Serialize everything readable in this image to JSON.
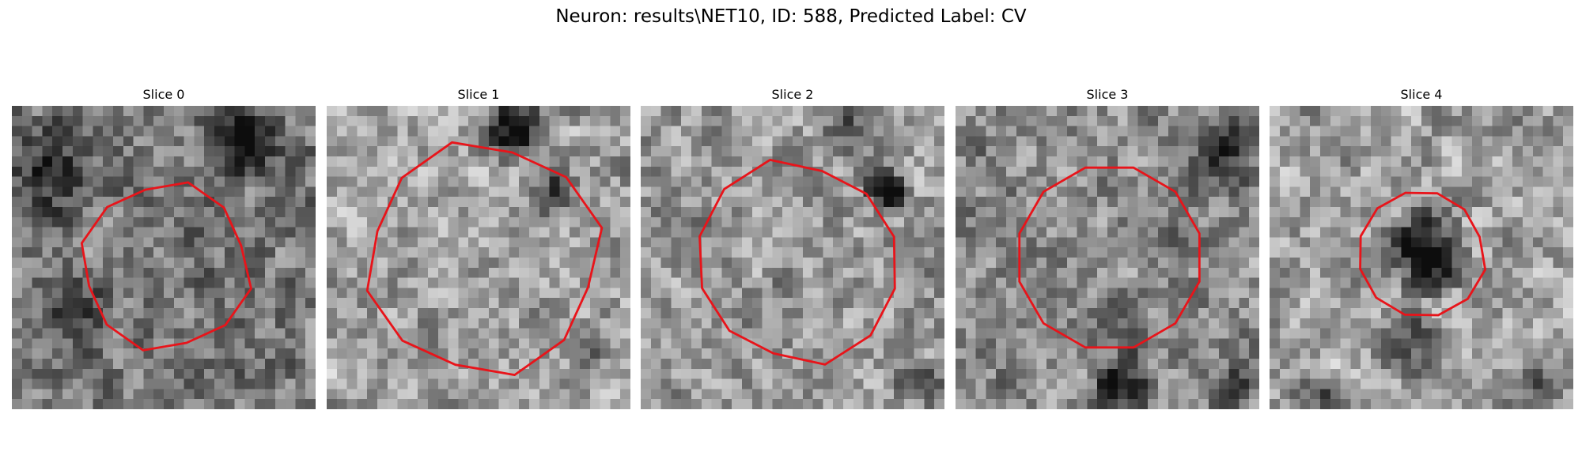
{
  "figure": {
    "title": "Neuron: results\\NET10, ID: 588, Predicted Label: CV"
  },
  "contour_color": "#e8141a",
  "panels": [
    {
      "title": "Slice 0",
      "seed": 11,
      "radius": 8.3,
      "cx": 15.2,
      "cy": 15.8,
      "dark": 0.25,
      "dark_blobs": [
        {
          "x": 22,
          "y": 3,
          "r": 5,
          "s": 0.55
        },
        {
          "x": 3,
          "y": 6,
          "r": 6,
          "s": 0.35
        },
        {
          "x": 6,
          "y": 20,
          "r": 4,
          "s": 0.3
        }
      ]
    },
    {
      "title": "Slice 1",
      "seed": 23,
      "radius": 11.5,
      "cx": 15.5,
      "cy": 15.2,
      "dark": 0.1,
      "dark_blobs": [
        {
          "x": 18,
          "y": 2,
          "r": 4,
          "s": 0.75
        },
        {
          "x": 22,
          "y": 8,
          "r": 3,
          "s": 0.5
        },
        {
          "x": 25,
          "y": 23,
          "r": 3,
          "s": 0.25
        }
      ]
    },
    {
      "title": "Slice 2",
      "seed": 37,
      "radius": 10.0,
      "cx": 15.5,
      "cy": 15.5,
      "dark": 0.12,
      "dark_blobs": [
        {
          "x": 24,
          "y": 8,
          "r": 3,
          "s": 0.65
        },
        {
          "x": 20,
          "y": 2,
          "r": 4,
          "s": 0.3
        },
        {
          "x": 27,
          "y": 27,
          "r": 3,
          "s": 0.3
        }
      ]
    },
    {
      "title": "Slice 3",
      "seed": 51,
      "radius": 10.0,
      "cx": 15.2,
      "cy": 15.0,
      "dark": 0.18,
      "dark_blobs": [
        {
          "x": 26,
          "y": 4,
          "r": 5,
          "s": 0.45
        },
        {
          "x": 16,
          "y": 27,
          "r": 4,
          "s": 0.45
        },
        {
          "x": 27,
          "y": 27,
          "r": 3,
          "s": 0.35
        }
      ]
    },
    {
      "title": "Slice 4",
      "seed": 67,
      "radius": 6.3,
      "cx": 15.0,
      "cy": 14.5,
      "dark": 0.1,
      "dark_blobs": [
        {
          "x": 15,
          "y": 14,
          "r": 5,
          "s": 0.7
        },
        {
          "x": 13,
          "y": 23,
          "r": 4,
          "s": 0.45
        },
        {
          "x": 5,
          "y": 29,
          "r": 4,
          "s": 0.4
        },
        {
          "x": 26,
          "y": 28,
          "r": 4,
          "s": 0.35
        }
      ]
    }
  ]
}
